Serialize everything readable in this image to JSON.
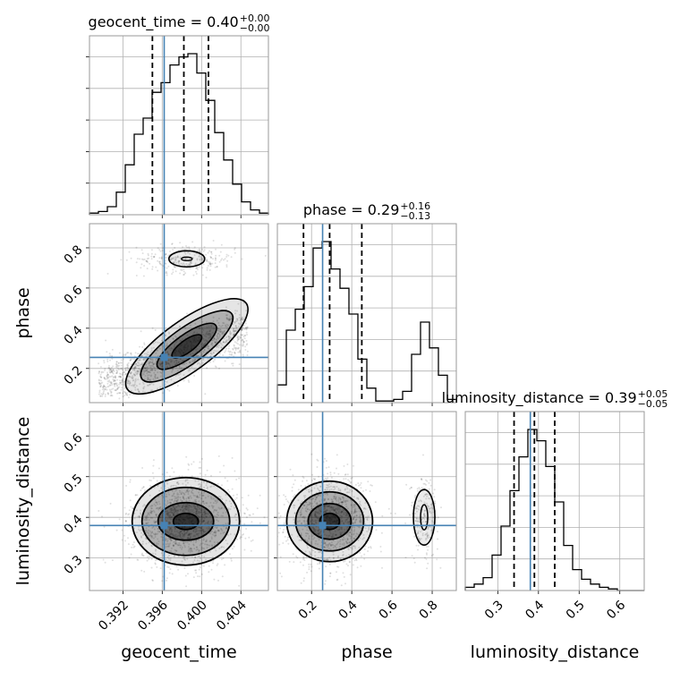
{
  "chart_data": {
    "type": "corner",
    "parameters": [
      "geocent_time",
      "phase",
      "luminosity_distance"
    ],
    "truth_color": "#4682b4",
    "axes": {
      "geocent_time": {
        "range": [
          0.3886,
          0.4068
        ],
        "ticks": [
          0.392,
          0.396,
          0.4,
          0.404
        ],
        "tick_labels": [
          "0.392",
          "0.396",
          "0.400",
          "0.404"
        ]
      },
      "phase": {
        "range": [
          0.03,
          0.92
        ],
        "ticks": [
          0.2,
          0.4,
          0.6,
          0.8
        ],
        "tick_labels": [
          "0.2",
          "0.4",
          "0.6",
          "0.8"
        ]
      },
      "luminosity_distance": {
        "range": [
          0.22,
          0.66
        ],
        "ticks": [
          0.3,
          0.4,
          0.5,
          0.6
        ],
        "tick_labels": [
          "0.3",
          "0.4",
          "0.5",
          "0.6"
        ]
      }
    },
    "titles": [
      {
        "param": "geocent_time",
        "prefix": "geocent_time = 0.40",
        "plus": "+0.00",
        "minus": "−0.00"
      },
      {
        "param": "phase",
        "prefix": "phase = 0.29",
        "plus": "+0.16",
        "minus": "−0.13"
      },
      {
        "param": "luminosity_distance",
        "prefix": "luminosity_distance = 0.39",
        "plus": "+0.05",
        "minus": "−0.05"
      }
    ],
    "truths": {
      "geocent_time": 0.3962,
      "phase": 0.255,
      "luminosity_distance": 0.38
    },
    "quantiles": {
      "geocent_time": [
        0.395,
        0.3982,
        0.4007
      ],
      "phase": [
        0.16,
        0.29,
        0.45
      ],
      "luminosity_distance": [
        0.34,
        0.39,
        0.44
      ]
    },
    "histograms": {
      "geocent_time": {
        "x_start": 0.3886,
        "bin_width": 0.00091,
        "counts": [
          0.01,
          0.02,
          0.05,
          0.14,
          0.31,
          0.5,
          0.6,
          0.76,
          0.82,
          0.93,
          0.98,
          1.0,
          0.88,
          0.71,
          0.51,
          0.34,
          0.19,
          0.08,
          0.03,
          0.01
        ]
      },
      "phase": {
        "x_start": 0.03,
        "bin_width": 0.0445,
        "counts": [
          0.11,
          0.45,
          0.58,
          0.72,
          0.96,
          1.0,
          0.83,
          0.71,
          0.55,
          0.27,
          0.09,
          0.01,
          0.01,
          0.02,
          0.07,
          0.3,
          0.5,
          0.34,
          0.17,
          0.02
        ]
      },
      "luminosity_distance": {
        "x_start": 0.22,
        "bin_width": 0.022,
        "counts": [
          0.02,
          0.04,
          0.08,
          0.22,
          0.4,
          0.62,
          0.83,
          1.0,
          0.93,
          0.77,
          0.55,
          0.28,
          0.13,
          0.07,
          0.04,
          0.02,
          0.01,
          0.0,
          0.0,
          0.0
        ]
      }
    }
  }
}
